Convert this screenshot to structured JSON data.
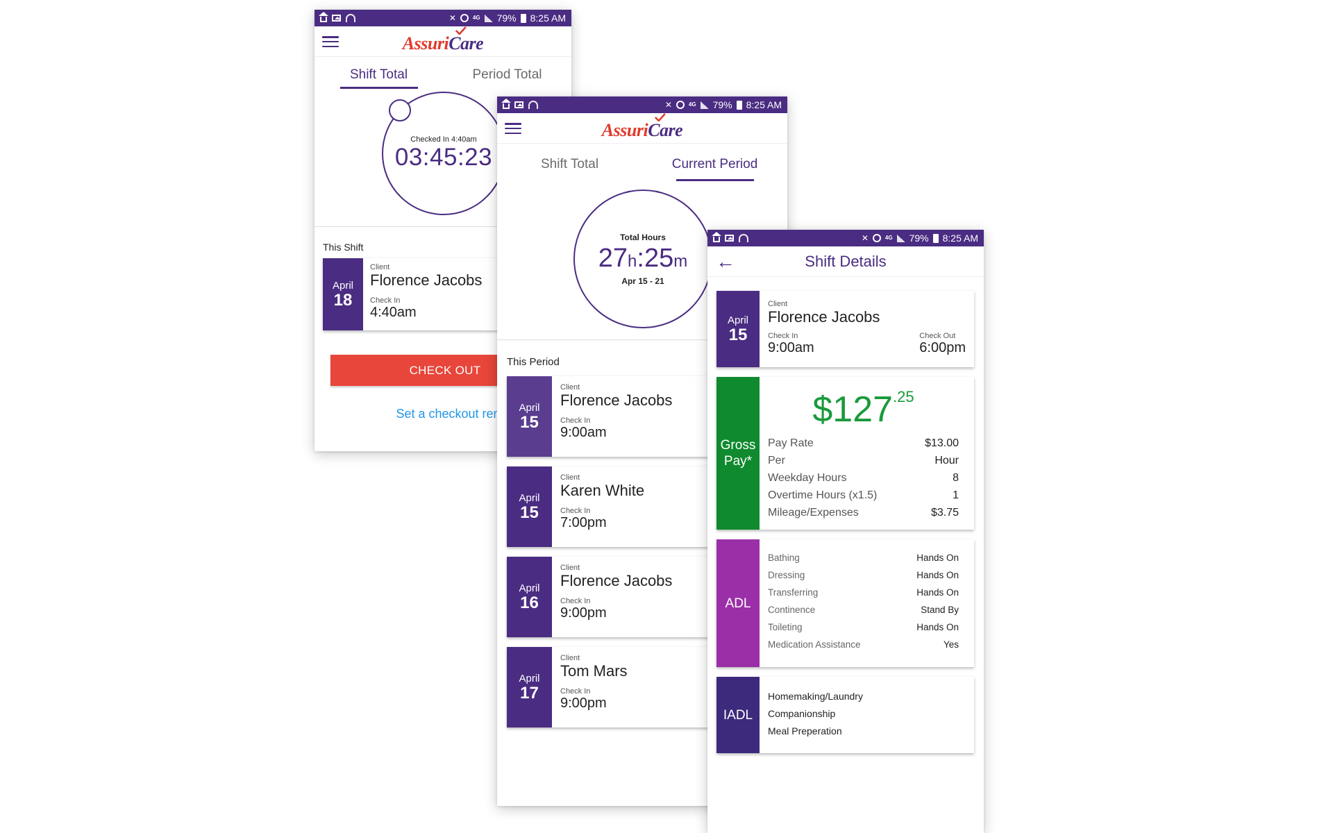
{
  "status_bar": {
    "battery": "79%",
    "time": "8:25 AM"
  },
  "brand": {
    "part1": "Assuri",
    "part2": "Care",
    "red": "#e03a2b",
    "purple": "#4a2c82"
  },
  "colors": {
    "accent": "#4a2c82",
    "checkout": "#e8463a",
    "gross_pay": "#0f8a2e",
    "adl": "#9b2fa8",
    "iadl": "#3d2a7c",
    "link": "#2196e8",
    "money": "#1a9a3c"
  },
  "screen1": {
    "tabs": [
      "Shift Total",
      "Period Total"
    ],
    "timer": {
      "caption": "Checked In 4:40am",
      "value": "03:45:23"
    },
    "section_label": "This Shift",
    "card": {
      "month": "April",
      "day": "18",
      "client_label": "Client",
      "client": "Florence Jacobs",
      "checkin_label": "Check In",
      "checkin": "4:40am"
    },
    "checkout_button": "CHECK OUT",
    "reminder_link": "Set a checkout reminder"
  },
  "screen2": {
    "tabs": [
      "Shift Total",
      "Current Period"
    ],
    "hours": {
      "caption": "Total Hours",
      "h": "27",
      "h_unit": "h",
      "sep": ":",
      "m": "25",
      "m_unit": "m",
      "range": "Apr 15 - 21"
    },
    "section_label": "This Period",
    "cards": [
      {
        "month": "April",
        "day": "15",
        "client_label": "Client",
        "client": "Florence Jacobs",
        "checkin_label": "Check In",
        "checkin": "9:00am"
      },
      {
        "month": "April",
        "day": "15",
        "client_label": "Client",
        "client": "Karen White",
        "checkin_label": "Check In",
        "checkin": "7:00pm"
      },
      {
        "month": "April",
        "day": "16",
        "client_label": "Client",
        "client": "Florence Jacobs",
        "checkin_label": "Check In",
        "checkin": "9:00pm"
      },
      {
        "month": "April",
        "day": "17",
        "client_label": "Client",
        "client": "Tom Mars",
        "checkin_label": "Check In",
        "checkin": "9:00pm"
      }
    ]
  },
  "screen3": {
    "title": "Shift Details",
    "shift": {
      "month": "April",
      "day": "15",
      "client_label": "Client",
      "client": "Florence Jacobs",
      "checkin_label": "Check In",
      "checkin": "9:00am",
      "checkout_label": "Check Out",
      "checkout": "6:00pm"
    },
    "gross_pay": {
      "label_line1": "Gross",
      "label_line2": "Pay*",
      "dollars": "$127",
      "cents": ".25",
      "rows": [
        {
          "label": "Pay Rate",
          "value": "$13.00"
        },
        {
          "label": "Per",
          "value": "Hour"
        },
        {
          "label": "Weekday Hours",
          "value": "8"
        },
        {
          "label": "Overtime Hours (x1.5)",
          "value": "1"
        },
        {
          "label": "Mileage/Expenses",
          "value": "$3.75"
        }
      ]
    },
    "adl": {
      "label": "ADL",
      "rows": [
        {
          "label": "Bathing",
          "value": "Hands On"
        },
        {
          "label": "Dressing",
          "value": "Hands On"
        },
        {
          "label": "Transferring",
          "value": "Hands On"
        },
        {
          "label": "Continence",
          "value": "Stand By"
        },
        {
          "label": "Toileting",
          "value": "Hands On"
        },
        {
          "label": "Medication Assistance",
          "value": "Yes"
        }
      ]
    },
    "iadl": {
      "label": "IADL",
      "items": [
        "Homemaking/Laundry",
        "Companionship",
        "Meal Preperation"
      ]
    }
  }
}
